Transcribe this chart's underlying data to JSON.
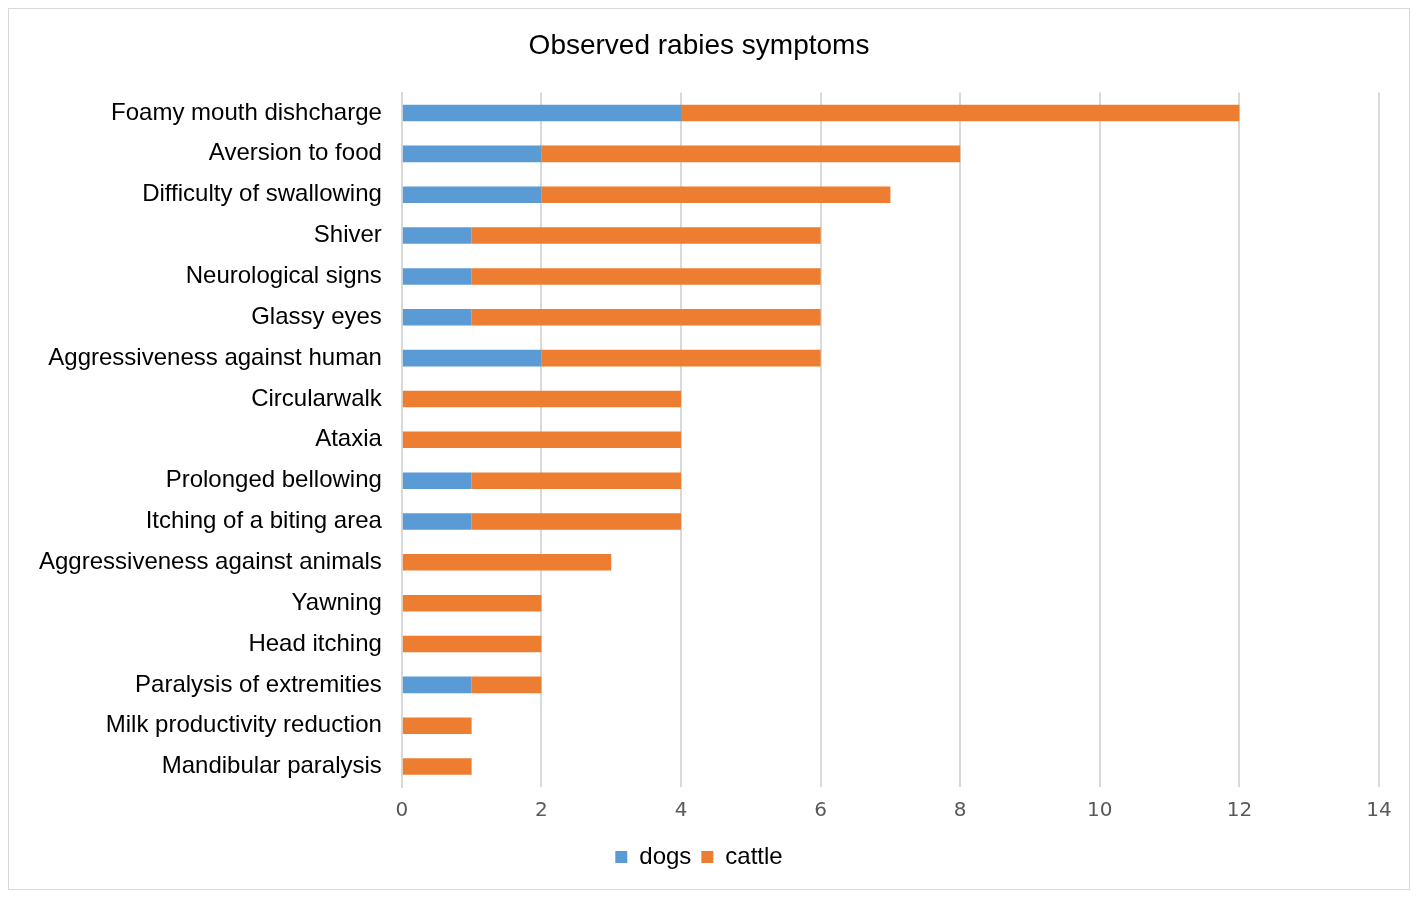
{
  "chart_data": {
    "type": "bar",
    "orientation": "horizontal",
    "stacked": true,
    "title": "Observed rabies symptoms",
    "categories": [
      "Foamy mouth dishcharge",
      "Aversion to food",
      "Difficulty of swallowing",
      "Shiver",
      "Neurological signs",
      "Glassy eyes",
      "Aggressiveness against human",
      "Circularwalk",
      "Ataxia",
      "Prolonged bellowing",
      "Itching of a biting area",
      "Aggressiveness against animals",
      "Yawning",
      "Head itching",
      "Paralysis of extremities",
      "Milk productivity reduction",
      "Mandibular paralysis"
    ],
    "series": [
      {
        "name": "dogs",
        "color": "#5b9bd5",
        "values": [
          4,
          2,
          2,
          1,
          1,
          1,
          2,
          0,
          0,
          1,
          1,
          0,
          0,
          0,
          1,
          0,
          0
        ]
      },
      {
        "name": "cattle",
        "color": "#ed7d31",
        "values": [
          8,
          6,
          5,
          5,
          5,
          5,
          4,
          4,
          4,
          3,
          3,
          3,
          2,
          2,
          1,
          1,
          1
        ]
      }
    ],
    "xlim": [
      0,
      14
    ],
    "xticks": [
      0,
      2,
      4,
      6,
      8,
      10,
      12,
      14
    ],
    "grid": "x",
    "legend": "bottom"
  }
}
